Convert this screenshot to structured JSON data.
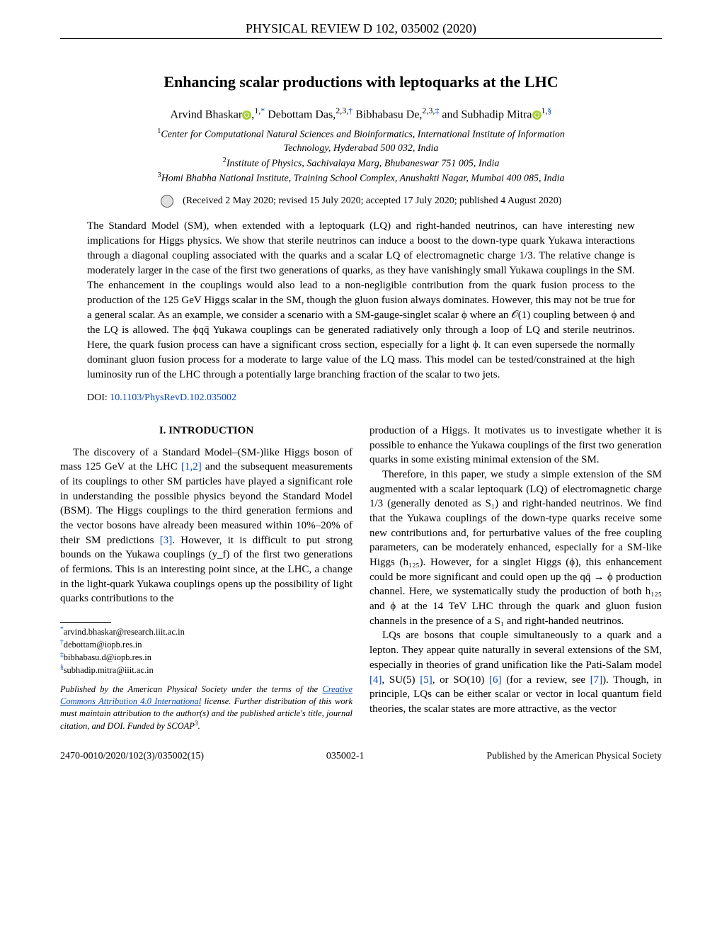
{
  "journal_header": "PHYSICAL REVIEW D 102, 035002 (2020)",
  "title": "Enhancing scalar productions with leptoquarks at the LHC",
  "authors": {
    "a1": "Arvind Bhaskar",
    "a1_aff": "1,",
    "a1_sym": "*",
    "a2": "Debottam Das,",
    "a2_aff": "2,3,",
    "a2_sym": "†",
    "a3": "Bibhabasu De,",
    "a3_aff": "2,3,",
    "a3_sym": "‡",
    "a4_pre": "and ",
    "a4": "Subhadip Mitra",
    "a4_aff": "1,",
    "a4_sym": "§"
  },
  "affiliations": {
    "l1": "Center for Computational Natural Sciences and Bioinformatics, International Institute of Information",
    "l2": "Technology, Hyderabad 500 032, India",
    "l3": "Institute of Physics, Sachivalaya Marg, Bhubaneswar 751 005, India",
    "l4": "Homi Bhabha National Institute, Training School Complex, Anushakti Nagar, Mumbai 400 085, India"
  },
  "dates": "(Received 2 May 2020; revised 15 July 2020; accepted 17 July 2020; published 4 August 2020)",
  "abstract": "The Standard Model (SM), when extended with a leptoquark (LQ) and right-handed neutrinos, can have interesting new implications for Higgs physics. We show that sterile neutrinos can induce a boost to the down-type quark Yukawa interactions through a diagonal coupling associated with the quarks and a scalar LQ of electromagnetic charge 1/3. The relative change is moderately larger in the case of the first two generations of quarks, as they have vanishingly small Yukawa couplings in the SM. The enhancement in the couplings would also lead to a non-negligible contribution from the quark fusion process to the production of the 125 GeV Higgs scalar in the SM, though the gluon fusion always dominates. However, this may not be true for a general scalar. As an example, we consider a scenario with a SM-gauge-singlet scalar ϕ where an 𝒪(1) coupling between ϕ and the LQ is allowed. The ϕqq̄ Yukawa couplings can be generated radiatively only through a loop of LQ and sterile neutrinos. Here, the quark fusion process can have a significant cross section, especially for a light ϕ. It can even supersede the normally dominant gluon fusion process for a moderate to large value of the LQ mass. This model can be tested/constrained at the high luminosity run of the LHC through a potentially large branching fraction of the scalar to two jets.",
  "doi_label": "DOI:",
  "doi_link": "10.1103/PhysRevD.102.035002",
  "section1": "I. INTRODUCTION",
  "col1": {
    "p1a": "The discovery of a Standard Model–(SM-)like Higgs boson of mass 125 GeV at the LHC ",
    "r12": "[1,2]",
    "p1b": " and the subsequent measurements of its couplings to other SM particles have played a significant role in understanding the possible physics beyond the Standard Model (BSM). The Higgs couplings to the third generation fermions and the vector bosons have already been measured within 10%–20% of their SM predictions ",
    "r3": "[3]",
    "p1c": ". However, it is difficult to put strong bounds on the Yukawa couplings (y_f) of the first two generations of fermions. This is an interesting point since, at the LHC, a change in the light-quark Yukawa couplings opens up the possibility of light quarks contributions to the "
  },
  "footnotes": {
    "f1s": "*",
    "f1": "arvind.bhaskar@research.iiit.ac.in",
    "f2s": "†",
    "f2": "debottam@iopb.res.in",
    "f3s": "‡",
    "f3": "bibhabasu.d@iopb.res.in",
    "f4s": "§",
    "f4": "subhadip.mitra@iiit.ac.in"
  },
  "license": {
    "t1": "Published by the American Physical Society under the terms of the ",
    "link": "Creative Commons Attribution 4.0 International",
    "t2": " license. Further distribution of this work must maintain attribution to the author(s) and the published article's title, journal citation, and DOI. Funded by SCOAP",
    "sup": "3",
    "t3": "."
  },
  "col2": {
    "p1": "production of a Higgs. It motivates us to investigate whether it is possible to enhance the Yukawa couplings of the first two generation quarks in some existing minimal extension of the SM.",
    "p2": "Therefore, in this paper, we study a simple extension of the SM augmented with a scalar leptoquark (LQ) of electromagnetic charge 1/3 (generally denoted as S₁) and right-handed neutrinos. We find that the Yukawa couplings of the down-type quarks receive some new contributions and, for perturbative values of the free coupling parameters, can be moderately enhanced, especially for a SM-like Higgs (h₁₂₅). However, for a singlet Higgs (ϕ), this enhancement could be more significant and could open up the qq̄ → ϕ production channel. Here, we systematically study the production of both h₁₂₅ and ϕ at the 14 TeV LHC through the quark and gluon fusion channels in the presence of a S₁ and right-handed neutrinos.",
    "p3a": "LQs are bosons that couple simultaneously to a quark and a lepton. They appear quite naturally in several extensions of the SM, especially in theories of grand unification like the Pati-Salam model ",
    "r4": "[4]",
    "p3b": ", SU(5) ",
    "r5": "[5]",
    "p3c": ", or SO(10) ",
    "r6": "[6]",
    "p3d": " (for a review, see ",
    "r7": "[7]",
    "p3e": "). Though, in principle, LQs can be either scalar or vector in local quantum field theories, the scalar states are more attractive, as the vector"
  },
  "footer": {
    "left": "2470-0010/2020/102(3)/035002(15)",
    "center": "035002-1",
    "right": "Published by the American Physical Society"
  }
}
